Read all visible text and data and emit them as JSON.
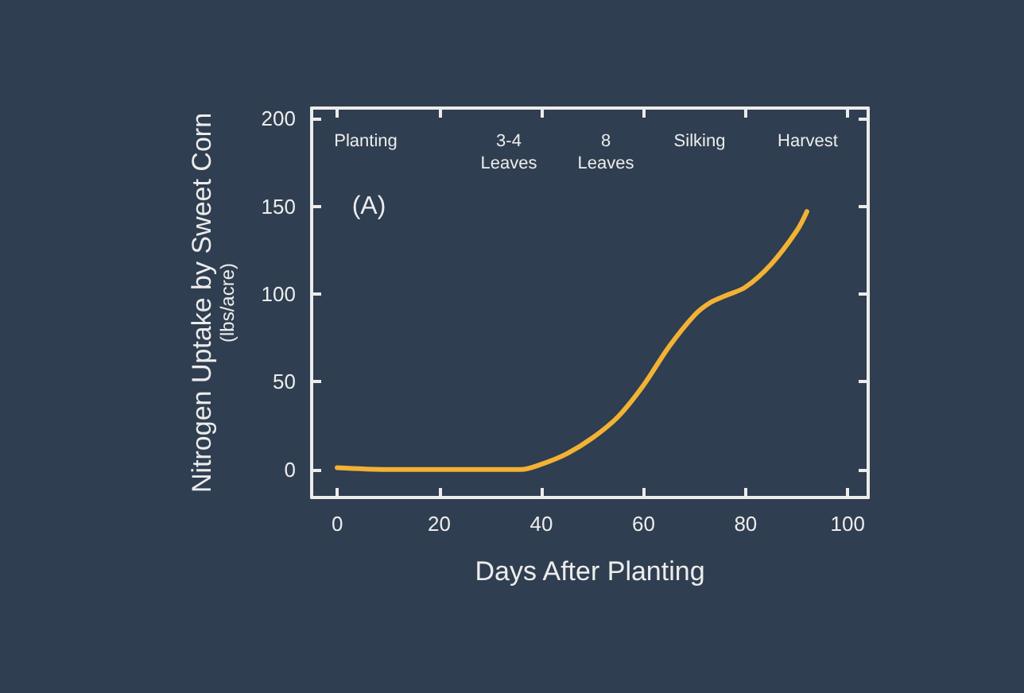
{
  "chart_data": {
    "type": "line",
    "xlabel": "Days After Planting",
    "ylabel": "Nitrogen Uptake by Sweet Corn\n(lbs/acre)",
    "x": [
      0,
      10,
      20,
      30,
      36,
      40,
      45,
      50,
      55,
      60,
      65,
      70,
      73,
      76,
      80,
      85,
      90,
      92
    ],
    "series": [
      {
        "color": "#f2b233",
        "values": [
          1,
          0,
          0,
          0,
          0,
          3,
          9,
          18,
          30,
          48,
          70,
          88,
          95,
          99,
          104,
          117,
          136,
          147
        ]
      }
    ],
    "xlim": [
      -5,
      104
    ],
    "xticks": [
      0,
      20,
      40,
      60,
      80,
      100
    ],
    "ylim": [
      -16,
      206
    ],
    "yticks": [
      0,
      50,
      100,
      150,
      200
    ],
    "annotations": [
      "Planting",
      "3-4\nLeaves",
      "8\nLeaves",
      "Silking",
      "Harvest",
      "(A)"
    ],
    "grid": false,
    "marker": "none",
    "line_style": "solid"
  }
}
